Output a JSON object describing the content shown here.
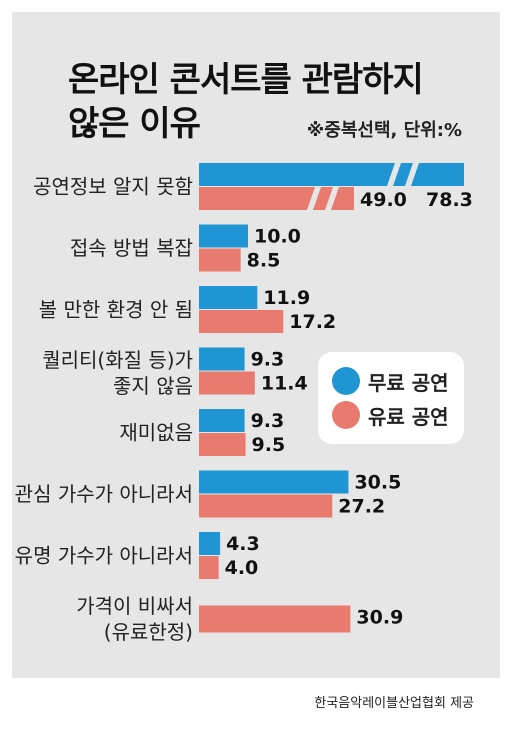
{
  "title": "온라인 콘서트를 관람하지\n않은 이유",
  "note": "※중복선택, 단위:%",
  "source": "한국음악레이블산업협회 제공",
  "colors": {
    "free": "#1f96d3",
    "paid": "#e87a6e",
    "panel": "#e6e6e6"
  },
  "legend": [
    {
      "label": "무료 공연",
      "color": "#1f96d3"
    },
    {
      "label": "유료 공연",
      "color": "#e87a6e"
    }
  ],
  "chart_data": {
    "type": "bar",
    "orientation": "horizontal",
    "title": "온라인 콘서트를 관람하지 않은 이유",
    "unit": "%",
    "categories": [
      "공연정보 알지 못함",
      "접속 방법 복잡",
      "볼 만한 환경 안 됨",
      "퀄리티(화질 등)가\n좋지 않음",
      "재미없음",
      "관심 가수가 아니라서",
      "유명 가수가 아니라서",
      "가격이 비싸서\n(유료한정)"
    ],
    "series": [
      {
        "name": "무료 공연",
        "values": [
          78.3,
          10.0,
          11.9,
          9.3,
          9.3,
          30.5,
          4.3,
          null
        ]
      },
      {
        "name": "유료 공연",
        "values": [
          49.0,
          8.5,
          17.2,
          11.4,
          9.5,
          27.2,
          4.0,
          30.9
        ]
      }
    ],
    "value_labels": {
      "무료 공연": [
        "78.3",
        "10.0",
        "11.9",
        "9.3",
        "9.3",
        "30.5",
        "4.3",
        null
      ],
      "유료 공연": [
        "49.0",
        "8.5",
        "17.2",
        "11.4",
        "9.5",
        "27.2",
        "4.0",
        "30.9"
      ]
    },
    "axis_break": true,
    "legend_position": "right-middle"
  }
}
